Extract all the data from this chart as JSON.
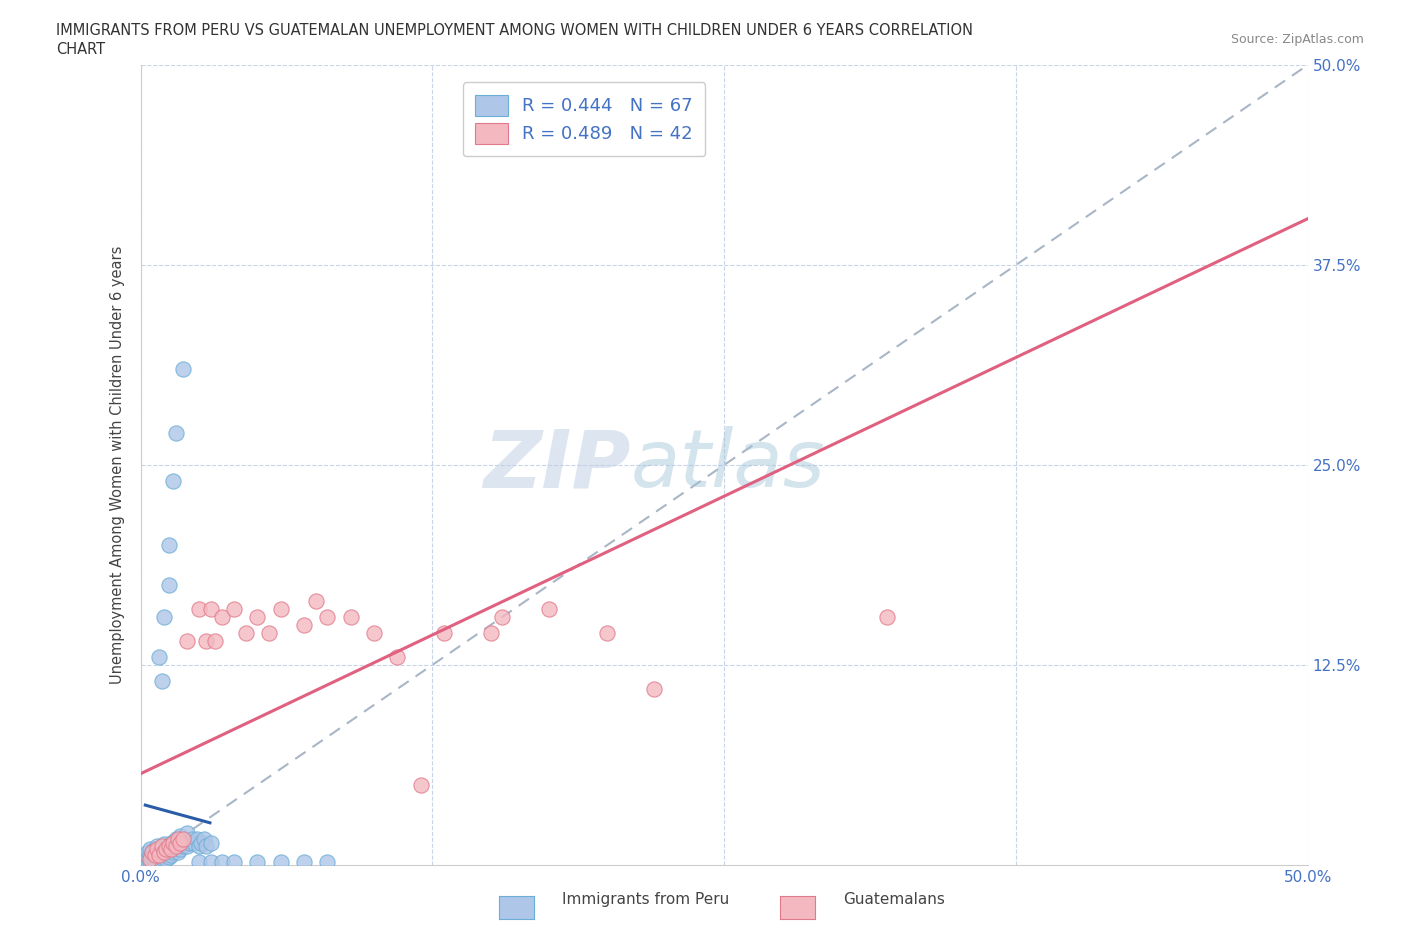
{
  "title_line1": "IMMIGRANTS FROM PERU VS GUATEMALAN UNEMPLOYMENT AMONG WOMEN WITH CHILDREN UNDER 6 YEARS CORRELATION",
  "title_line2": "CHART",
  "source_text": "Source: ZipAtlas.com",
  "ylabel": "Unemployment Among Women with Children Under 6 years",
  "xlim": [
    0.0,
    0.5
  ],
  "ylim": [
    0.0,
    0.5
  ],
  "xtick_left_label": "0.0%",
  "xtick_right_label": "50.0%",
  "ytick_labels_right": [
    "12.5%",
    "25.0%",
    "37.5%",
    "50.0%"
  ],
  "ytick_vals": [
    0.125,
    0.25,
    0.375,
    0.5
  ],
  "peru_color": "#aec6e8",
  "peru_edge_color": "#6baed6",
  "guatemala_color": "#f4b8c1",
  "guatemala_edge_color": "#e07a8a",
  "peru_line_color": "#2a5ca8",
  "guatemala_line_color": "#e06080",
  "diagonal_line_color": "#a0aec0",
  "legend_peru_label": "Immigrants from Peru",
  "legend_guatemala_label": "Guatemalans",
  "r_peru": 0.444,
  "n_peru": 67,
  "r_guatemala": 0.489,
  "n_guatemala": 42,
  "watermark_zip": "ZIP",
  "watermark_atlas": "atlas",
  "background_color": "#ffffff",
  "grid_color": "#c8d4e8",
  "tick_label_color": "#4472c4",
  "title_color": "#333333",
  "source_color": "#888888"
}
